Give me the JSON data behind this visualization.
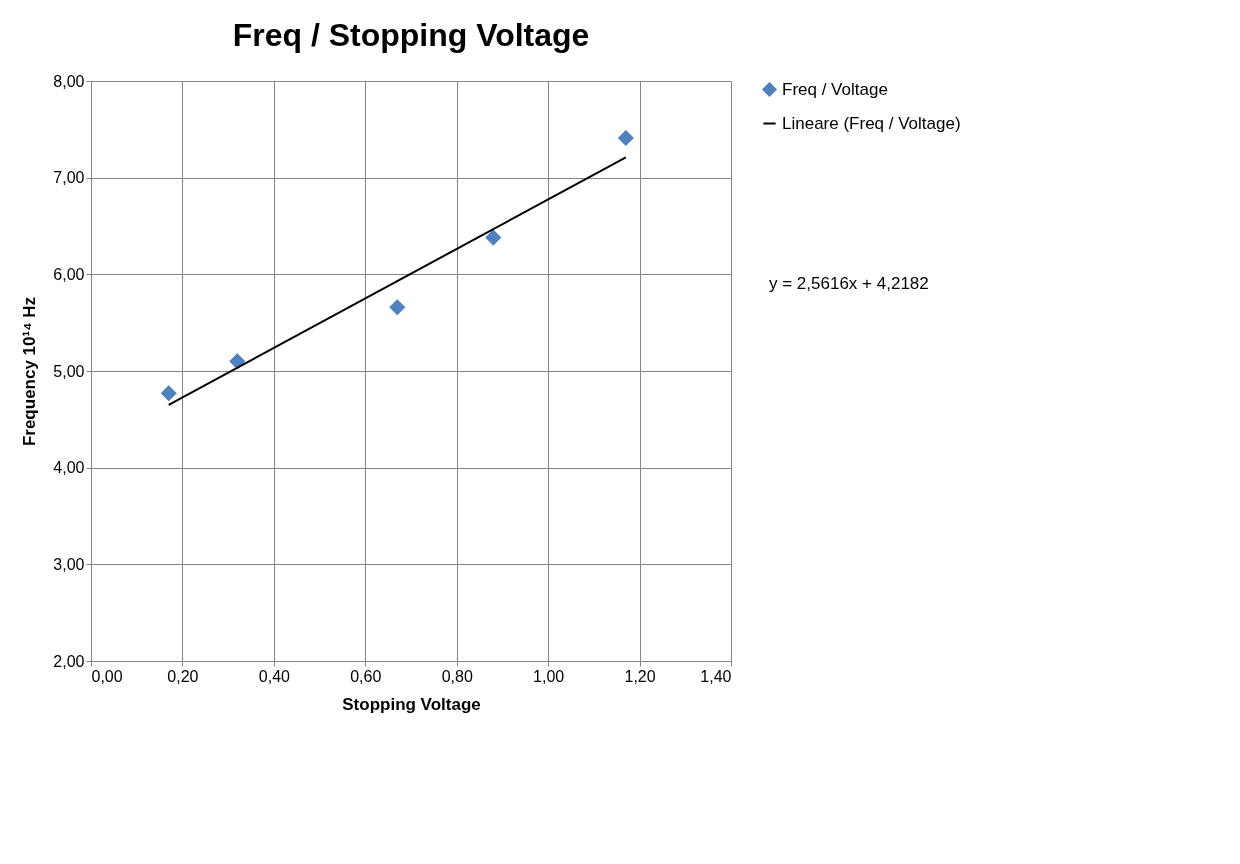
{
  "chart_data": {
    "type": "scatter",
    "title": "Freq / Stopping Voltage",
    "xlabel": "Stopping Voltage",
    "ylabel": "Frequency 10¹⁴ Hz",
    "series": [
      {
        "name": "Freq / Voltage",
        "color": "#4f81bd",
        "marker": "diamond",
        "x": [
          0.17,
          0.32,
          0.67,
          0.88,
          1.17
        ],
        "values": [
          4.77,
          5.1,
          5.66,
          6.38,
          7.41
        ]
      },
      {
        "name": "Lineare (Freq / Voltage)",
        "type": "line",
        "color": "#000000",
        "line_style": "solid",
        "x": [
          0.17,
          1.17
        ],
        "values": [
          4.65,
          7.21
        ]
      }
    ],
    "xlim": [
      0,
      1.4
    ],
    "xticks": [
      {
        "value": 0,
        "label": "0,00"
      },
      {
        "value": 0.2,
        "label": "0,20"
      },
      {
        "value": 0.4,
        "label": "0,40"
      },
      {
        "value": 0.6,
        "label": "0,60"
      },
      {
        "value": 0.8,
        "label": "0,80"
      },
      {
        "value": 1.0,
        "label": "1,00"
      },
      {
        "value": 1.2,
        "label": "1,20"
      },
      {
        "value": 1.4,
        "label": "1,40"
      }
    ],
    "ylim": [
      2,
      8
    ],
    "yticks": [
      {
        "value": 2,
        "label": "2,00"
      },
      {
        "value": 3,
        "label": "3,00"
      },
      {
        "value": 4,
        "label": "4,00"
      },
      {
        "value": 5,
        "label": "5,00"
      },
      {
        "value": 6,
        "label": "6,00"
      },
      {
        "value": 7,
        "label": "7,00"
      },
      {
        "value": 8,
        "label": "8,00"
      }
    ],
    "grid": true,
    "legend": "right",
    "annotations": [
      "y = 2,5616x + 4,2182"
    ]
  }
}
